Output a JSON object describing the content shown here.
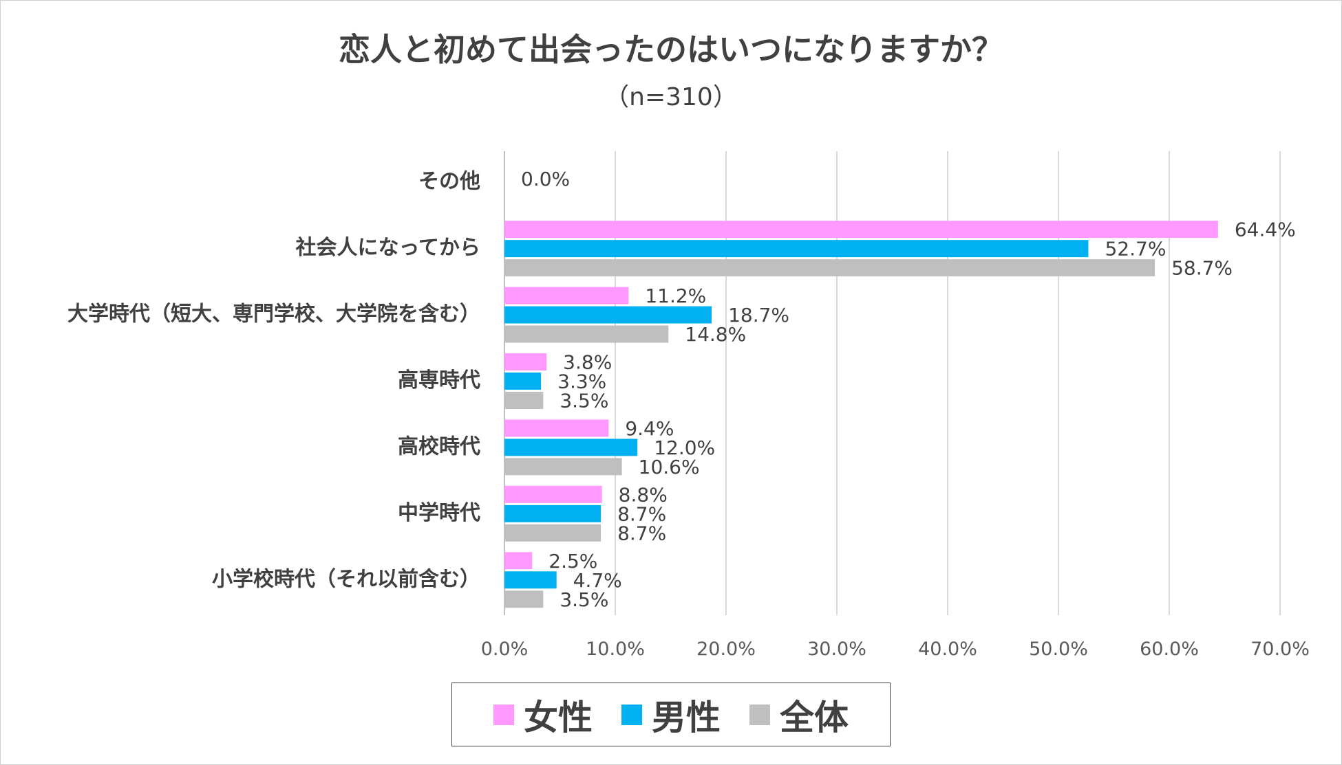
{
  "chart_data": {
    "type": "bar",
    "orientation": "horizontal",
    "title": "恋人と初めて出会ったのはいつになりますか？",
    "subtitle": "（n=310）",
    "categories": [
      "その他",
      "社会人になってから",
      "大学時代（短大、専門学校、大学院を含む）",
      "高専時代",
      "高校時代",
      "中学時代",
      "小学校時代（それ以前含む）"
    ],
    "series": [
      {
        "name": "女性",
        "color": "#FF99FF",
        "values": [
          0.0,
          64.4,
          11.2,
          3.8,
          9.4,
          8.8,
          2.5
        ]
      },
      {
        "name": "男性",
        "color": "#00B0F0",
        "values": [
          null,
          52.7,
          18.7,
          3.3,
          12.0,
          8.7,
          4.7
        ]
      },
      {
        "name": "全体",
        "color": "#BFBFBF",
        "values": [
          null,
          58.7,
          14.8,
          3.5,
          10.6,
          8.7,
          3.5
        ]
      }
    ],
    "value_labels": [
      [
        "0.0%",
        "64.4%",
        "11.2%",
        "3.8%",
        "9.4%",
        "8.8%",
        "2.5%"
      ],
      [
        null,
        "52.7%",
        "18.7%",
        "3.3%",
        "12.0%",
        "8.7%",
        "4.7%"
      ],
      [
        null,
        "58.7%",
        "14.8%",
        "3.5%",
        "10.6%",
        "8.7%",
        "3.5%"
      ]
    ],
    "xlim": [
      0,
      70
    ],
    "xticks": [
      0,
      10,
      20,
      30,
      40,
      50,
      60,
      70
    ],
    "xtick_labels": [
      "0.0%",
      "10.0%",
      "20.0%",
      "30.0%",
      "40.0%",
      "50.0%",
      "60.0%",
      "70.0%"
    ],
    "grid": true,
    "legend_position": "bottom"
  }
}
